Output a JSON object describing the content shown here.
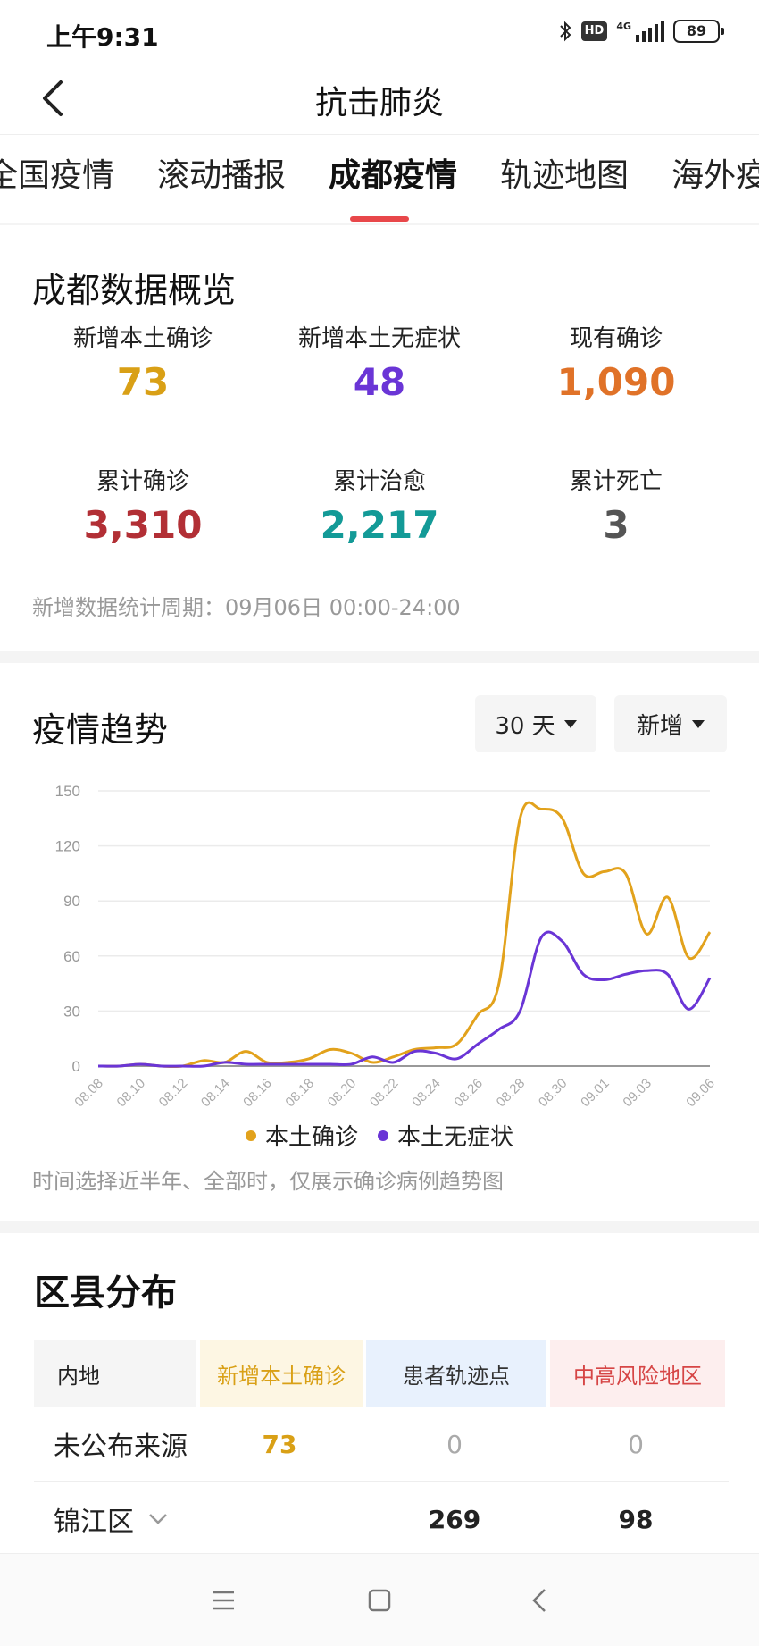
{
  "status_bar": {
    "time": "上午9:31",
    "hd": "HD",
    "network": "4G",
    "battery": "89"
  },
  "header": {
    "title": "抗击肺炎",
    "back_icon": "chevron-left-icon"
  },
  "tabs": [
    {
      "label": "全国疫情",
      "active": false
    },
    {
      "label": "滚动播报",
      "active": false
    },
    {
      "label": "成都疫情",
      "active": true
    },
    {
      "label": "轨迹地图",
      "active": false
    },
    {
      "label": "海外疫情",
      "active": false
    }
  ],
  "overview": {
    "title": "成都数据概览",
    "stats": [
      {
        "label": "新增本土确诊",
        "value": "73",
        "color": "#d9a016"
      },
      {
        "label": "新增本土无症状",
        "value": "48",
        "color": "#6a35d6"
      },
      {
        "label": "现有确诊",
        "value": "1,090",
        "color": "#e07228"
      },
      {
        "label": "累计确诊",
        "value": "3,310",
        "color": "#b22f35"
      },
      {
        "label": "累计治愈",
        "value": "2,217",
        "color": "#139a97"
      },
      {
        "label": "累计死亡",
        "value": "3",
        "color": "#555555"
      }
    ],
    "period": "新增数据统计周期：09月06日 00:00-24:00"
  },
  "trend": {
    "title": "疫情趋势",
    "range_select": "30 天",
    "type_select": "新增",
    "note": "时间选择近半年、全部时，仅展示确诊病例趋势图"
  },
  "chart_data": {
    "type": "line",
    "x": [
      "08.08",
      "08.09",
      "08.10",
      "08.11",
      "08.12",
      "08.13",
      "08.14",
      "08.15",
      "08.16",
      "08.17",
      "08.18",
      "08.19",
      "08.20",
      "08.21",
      "08.22",
      "08.23",
      "08.24",
      "08.25",
      "08.26",
      "08.27",
      "08.28",
      "08.29",
      "08.30",
      "08.31",
      "09.01",
      "09.02",
      "09.03",
      "09.04",
      "09.05",
      "09.06"
    ],
    "x_tick_labels": [
      "08.08",
      "08.10",
      "08.12",
      "08.14",
      "08.16",
      "08.18",
      "08.20",
      "08.22",
      "08.24",
      "08.26",
      "08.28",
      "08.30",
      "09.01",
      "09.03",
      "09.06"
    ],
    "x_tick_positions": [
      "08.08",
      "08.10",
      "08.12",
      "08.14",
      "08.16",
      "08.18",
      "08.20",
      "08.22",
      "08.24",
      "08.26",
      "08.28",
      "08.30",
      "09.01",
      "09.03",
      "09.06"
    ],
    "y_ticks": [
      0,
      30,
      60,
      90,
      120,
      150
    ],
    "ylim": [
      0,
      150
    ],
    "grid": true,
    "legend_position": "bottom",
    "series": [
      {
        "name": "本土确诊",
        "color": "#e2a21c",
        "values": [
          0,
          0,
          1,
          0,
          0,
          3,
          2,
          8,
          2,
          2,
          4,
          9,
          7,
          2,
          5,
          9,
          10,
          12,
          28,
          45,
          135,
          140,
          135,
          105,
          106,
          105,
          72,
          92,
          59,
          73
        ]
      },
      {
        "name": "本土无症状",
        "color": "#6a35d6",
        "values": [
          0,
          0,
          1,
          0,
          0,
          0,
          2,
          1,
          1,
          1,
          1,
          1,
          1,
          5,
          2,
          8,
          7,
          4,
          12,
          20,
          30,
          70,
          68,
          50,
          47,
          50,
          52,
          50,
          31,
          48
        ]
      }
    ]
  },
  "district": {
    "title": "区县分布",
    "headers": [
      "内地",
      "新增本土确诊",
      "患者轨迹点",
      "中高风险地区"
    ],
    "rows": [
      {
        "name": "未公布来源",
        "new_local": "73",
        "track_points": "0",
        "risk_areas": "0",
        "expandable": false
      },
      {
        "name": "锦江区",
        "new_local": "",
        "track_points": "269",
        "risk_areas": "98",
        "expandable": true
      }
    ]
  },
  "navbar": {
    "menu_icon": "menu-icon",
    "home_icon": "home-square-icon",
    "back_icon": "back-triangle-icon"
  }
}
